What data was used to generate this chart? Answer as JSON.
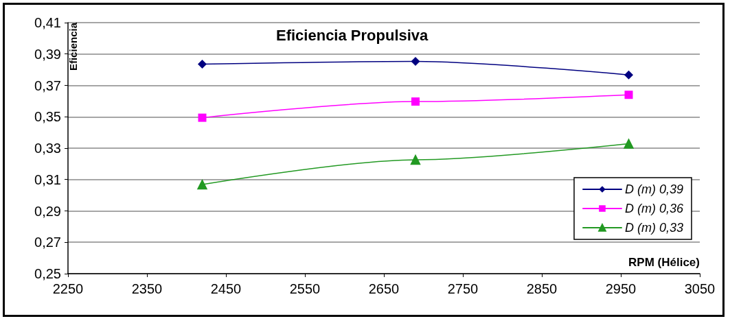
{
  "chart_data": {
    "type": "line",
    "title": "Eficiencia Propulsiva",
    "xlabel": "RPM (Hélice)",
    "ylabel": "Eficiencia",
    "x": [
      2420,
      2690,
      2960
    ],
    "series": [
      {
        "name": "D (m) 0,39",
        "color": "#000080",
        "values": [
          0.3836,
          0.3853,
          0.3767
        ],
        "marker": "diamond"
      },
      {
        "name": "D (m) 0,36",
        "color": "#ff00ff",
        "values": [
          0.3494,
          0.3597,
          0.364
        ],
        "marker": "square"
      },
      {
        "name": "D (m) 0,33",
        "color": "#229922",
        "values": [
          0.3068,
          0.3226,
          0.3328
        ],
        "marker": "triangle"
      }
    ],
    "xlim": [
      2250,
      3050
    ],
    "xticks": [
      2250,
      2350,
      2450,
      2550,
      2650,
      2750,
      2850,
      2950,
      3050
    ],
    "ylim": [
      0.25,
      0.41
    ],
    "yticks": [
      {
        "value": 0.25,
        "label": "0,25"
      },
      {
        "value": 0.27,
        "label": "0,27"
      },
      {
        "value": 0.29,
        "label": "0,29"
      },
      {
        "value": 0.31,
        "label": "0,31"
      },
      {
        "value": 0.33,
        "label": "0,33"
      },
      {
        "value": 0.35,
        "label": "0,35"
      },
      {
        "value": 0.37,
        "label": "0,37"
      },
      {
        "value": 0.39,
        "label": "0,39"
      },
      {
        "value": 0.41,
        "label": "0,41"
      }
    ],
    "grid": "y",
    "legend": "bottom right",
    "line_style": "solid"
  }
}
